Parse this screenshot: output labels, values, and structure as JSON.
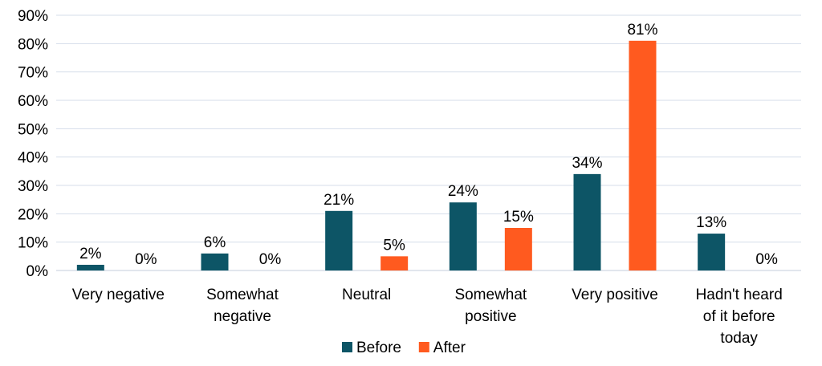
{
  "chart_data": {
    "type": "bar",
    "title": "",
    "xlabel": "",
    "ylabel": "",
    "ylim": [
      0,
      90
    ],
    "yticks": [
      0,
      10,
      20,
      30,
      40,
      50,
      60,
      70,
      80,
      90
    ],
    "y_format": "percent",
    "grid": true,
    "legend_position": "bottom",
    "categories": [
      "Very negative",
      "Somewhat negative",
      "Neutral",
      "Somewhat positive",
      "Very positive",
      "Hadn't heard of it before today"
    ],
    "category_lines": [
      [
        "Very negative"
      ],
      [
        "Somewhat",
        "negative"
      ],
      [
        "Neutral"
      ],
      [
        "Somewhat",
        "positive"
      ],
      [
        "Very positive"
      ],
      [
        "Hadn't heard",
        "of it before",
        "today"
      ]
    ],
    "series": [
      {
        "name": "Before",
        "color": "#0d5566",
        "values": [
          2,
          6,
          21,
          24,
          34,
          13
        ]
      },
      {
        "name": "After",
        "color": "#ff5a1f",
        "values": [
          0,
          0,
          5,
          15,
          81,
          0
        ]
      }
    ]
  }
}
